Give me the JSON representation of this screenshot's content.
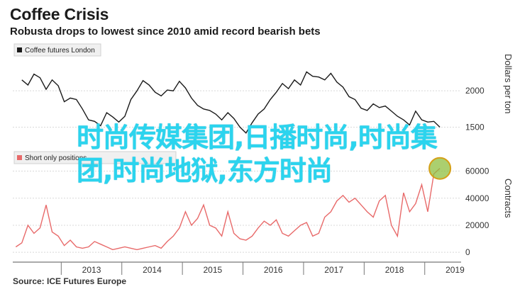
{
  "header": {
    "title": "Coffee Crisis",
    "subtitle": "Robusta drops to lowest since 2010 amid record bearish bets"
  },
  "footer": {
    "source": "Source: ICE Futures Europe"
  },
  "overlay": {
    "line1": "时尚传媒集团,日播时尚,时尚集",
    "line2": "团,时尚地狱,东方时尚",
    "color": "#2bd4ee"
  },
  "chart_data": [
    {
      "type": "line",
      "panel": "top",
      "legend": "Coffee futures London",
      "ylabel": "Dollars per ton",
      "ylim": [
        1300,
        2450
      ],
      "yticks": [
        1500,
        2000
      ],
      "color": "#1a1a1a",
      "grid": true,
      "series": [
        {
          "name": "Coffee futures London",
          "x": [
            2012.35,
            2012.45,
            2012.55,
            2012.65,
            2012.75,
            2012.85,
            2012.95,
            2013.05,
            2013.15,
            2013.25,
            2013.35,
            2013.45,
            2013.55,
            2013.65,
            2013.75,
            2013.85,
            2013.95,
            2014.05,
            2014.15,
            2014.25,
            2014.35,
            2014.45,
            2014.55,
            2014.65,
            2014.75,
            2014.85,
            2014.95,
            2015.05,
            2015.15,
            2015.25,
            2015.35,
            2015.45,
            2015.55,
            2015.65,
            2015.75,
            2015.85,
            2015.95,
            2016.05,
            2016.15,
            2016.25,
            2016.35,
            2016.45,
            2016.55,
            2016.65,
            2016.75,
            2016.85,
            2016.95,
            2017.05,
            2017.15,
            2017.25,
            2017.35,
            2017.45,
            2017.55,
            2017.65,
            2017.75,
            2017.85,
            2017.95,
            2018.05,
            2018.15,
            2018.25,
            2018.35,
            2018.45,
            2018.55,
            2018.65,
            2018.75,
            2018.85,
            2018.95,
            2019.05,
            2019.15,
            2019.25
          ],
          "y": [
            2150,
            2080,
            2230,
            2180,
            2020,
            2150,
            2070,
            1850,
            1900,
            1880,
            1750,
            1600,
            1580,
            1520,
            1700,
            1640,
            1570,
            1650,
            1880,
            2000,
            2140,
            2080,
            1980,
            1930,
            2010,
            2000,
            2130,
            2040,
            1900,
            1800,
            1750,
            1730,
            1680,
            1600,
            1700,
            1620,
            1500,
            1420,
            1560,
            1680,
            1750,
            1880,
            1980,
            2100,
            2030,
            2150,
            2080,
            2260,
            2200,
            2190,
            2150,
            2240,
            2120,
            2050,
            1920,
            1880,
            1760,
            1730,
            1820,
            1770,
            1790,
            1720,
            1650,
            1600,
            1530,
            1720,
            1600,
            1570,
            1580,
            1500
          ]
        }
      ],
      "x_ticks": [
        "2013",
        "2014",
        "2015",
        "2016",
        "2017",
        "2018",
        "2019"
      ],
      "xlim": [
        2012.2,
        2019.6
      ]
    },
    {
      "type": "line",
      "panel": "bottom",
      "legend": "Short only positions",
      "ylabel": "Contracts",
      "ylim": [
        -2000,
        65000
      ],
      "yticks": [
        0,
        20000,
        40000,
        60000
      ],
      "color": "#e86a6a",
      "grid": true,
      "series": [
        {
          "name": "Short only positions",
          "x": [
            2012.25,
            2012.35,
            2012.45,
            2012.55,
            2012.65,
            2012.75,
            2012.85,
            2012.95,
            2013.05,
            2013.15,
            2013.25,
            2013.35,
            2013.45,
            2013.55,
            2013.65,
            2013.75,
            2013.85,
            2013.95,
            2014.05,
            2014.15,
            2014.25,
            2014.35,
            2014.45,
            2014.55,
            2014.65,
            2014.75,
            2014.85,
            2014.95,
            2015.05,
            2015.15,
            2015.25,
            2015.35,
            2015.45,
            2015.55,
            2015.65,
            2015.75,
            2015.85,
            2015.95,
            2016.05,
            2016.15,
            2016.25,
            2016.35,
            2016.45,
            2016.55,
            2016.65,
            2016.75,
            2016.85,
            2016.95,
            2017.05,
            2017.15,
            2017.25,
            2017.35,
            2017.45,
            2017.55,
            2017.65,
            2017.75,
            2017.85,
            2017.95,
            2018.05,
            2018.15,
            2018.25,
            2018.35,
            2018.45,
            2018.55,
            2018.65,
            2018.75,
            2018.85,
            2018.95,
            2019.05,
            2019.15,
            2019.25
          ],
          "y": [
            4000,
            7000,
            20000,
            14000,
            18000,
            35000,
            15000,
            12000,
            5000,
            9000,
            4000,
            3000,
            4000,
            8000,
            6000,
            4000,
            2000,
            3000,
            4000,
            3000,
            2000,
            3000,
            4000,
            5000,
            3000,
            8000,
            12000,
            18000,
            30000,
            20000,
            25000,
            35000,
            20000,
            18000,
            12000,
            30000,
            14000,
            10000,
            9000,
            12000,
            18000,
            23000,
            20000,
            24000,
            14000,
            12000,
            16000,
            20000,
            22000,
            12000,
            14000,
            26000,
            30000,
            38000,
            42000,
            37000,
            40000,
            35000,
            30000,
            26000,
            38000,
            42000,
            20000,
            12000,
            44000,
            30000,
            36000,
            50000,
            30000,
            58000,
            62000
          ]
        }
      ],
      "x_ticks": [
        "2013",
        "2014",
        "2015",
        "2016",
        "2017",
        "2018",
        "2019"
      ],
      "xlim": [
        2012.2,
        2019.6
      ],
      "annotation": "circle-highlight at latest value"
    }
  ]
}
